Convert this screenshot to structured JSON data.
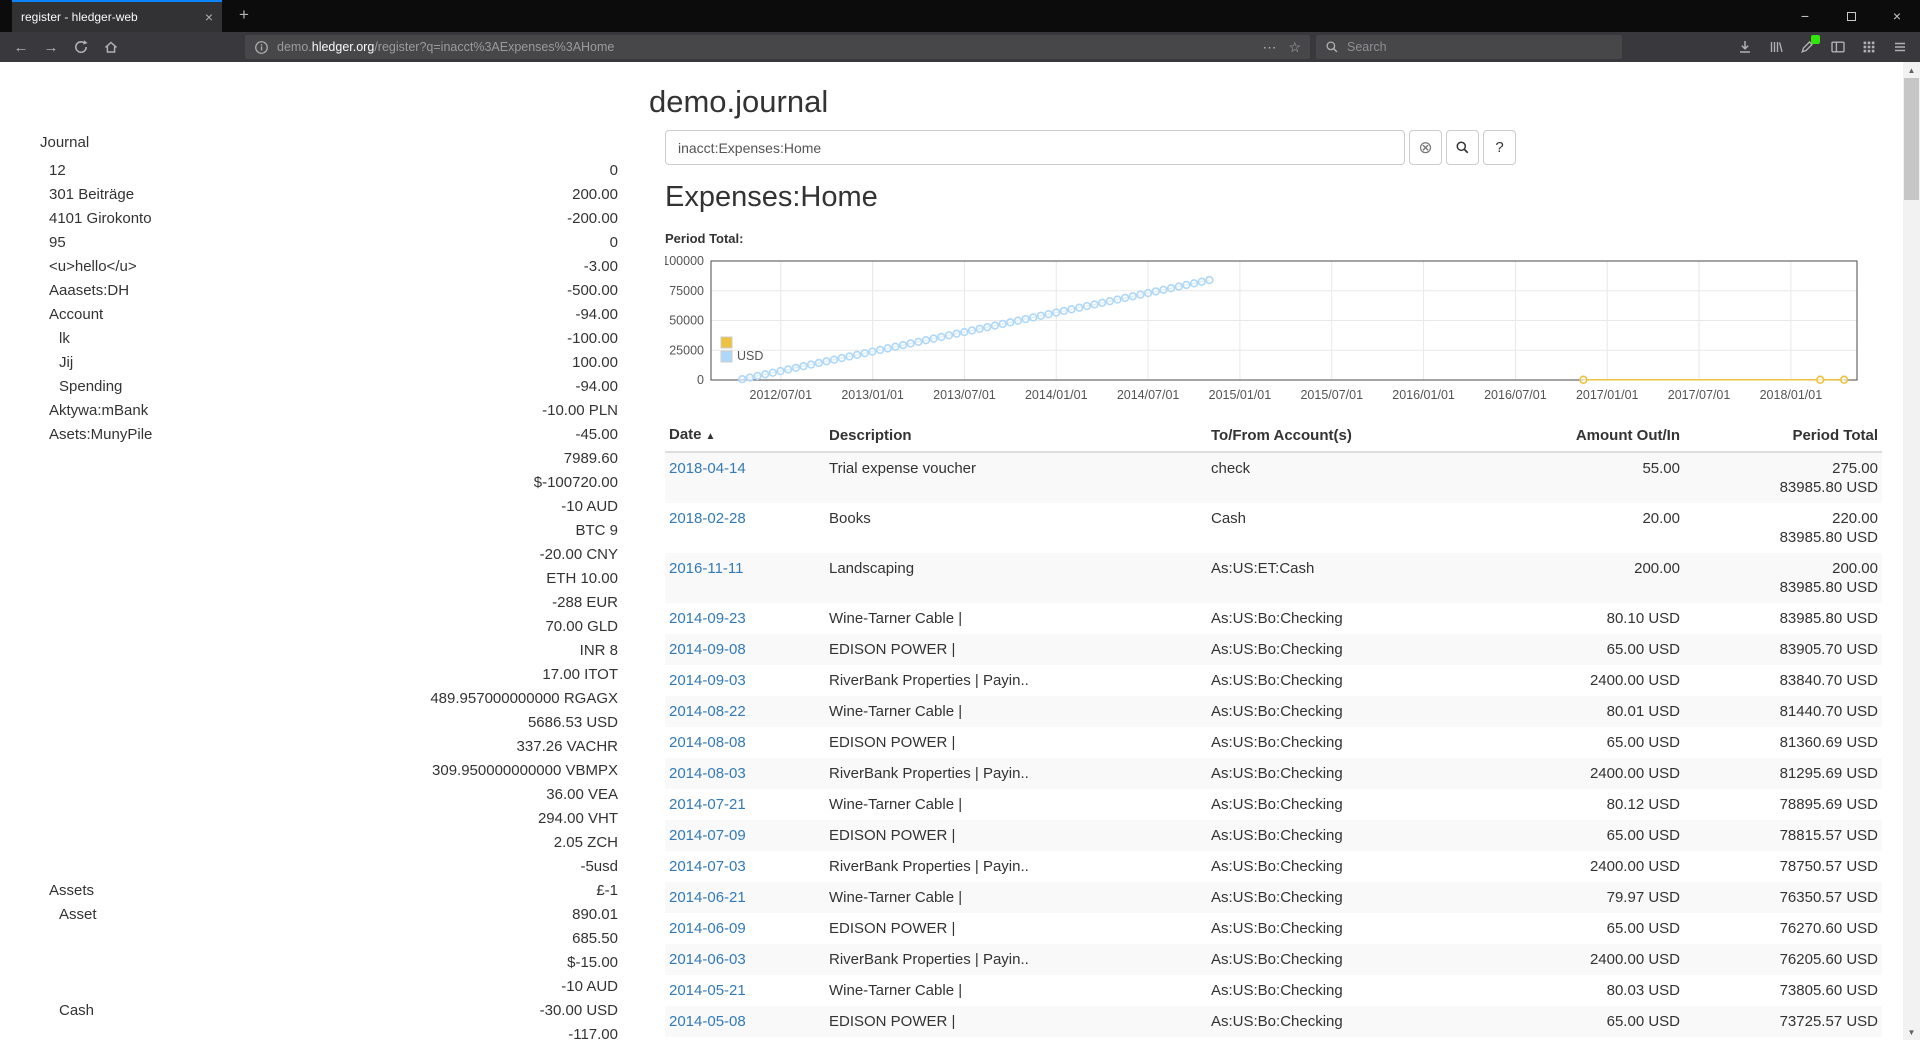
{
  "browser": {
    "tab": {
      "title": "register - hledger-web"
    },
    "url": {
      "prefix": "demo.",
      "domain": "hledger.org",
      "path": "/register?q=inacct%3AExpenses%3AHome"
    },
    "search_placeholder": "Search"
  },
  "icons": {
    "back": "←",
    "forward": "→",
    "new_tab": "+",
    "tab_close": "×",
    "minimize": "−",
    "close": "×",
    "page_actions": "⋯",
    "bookmark": "☆",
    "clear_query": "⊗",
    "sort_asc": "▲",
    "scroll_up": "▲",
    "scroll_down": "▼"
  },
  "theme": {
    "accent": "#0a84ff",
    "negative_amount": "#c00000",
    "link": "#337ab7"
  },
  "page": {
    "title": "demo.journal",
    "sidebar": {
      "heading": "Journal",
      "accounts": [
        {
          "name": "12",
          "indent": 1,
          "amount": "0"
        },
        {
          "name": "301 Beiträge",
          "indent": 1,
          "amount": "200.00"
        },
        {
          "name": "4101 Girokonto",
          "indent": 1,
          "amount": "-200.00",
          "neg": true
        },
        {
          "name": "95",
          "indent": 1,
          "amount": "0"
        },
        {
          "name": "<u>hello</u>",
          "indent": 1,
          "amount": "-3.00",
          "neg": true
        },
        {
          "name": "Aaasets:DH",
          "indent": 1,
          "amount": "-500.00",
          "neg": true
        },
        {
          "name": "Account",
          "indent": 1,
          "amount": "-94.00",
          "neg": true
        },
        {
          "name": "lk",
          "indent": 2,
          "amount": "-100.00",
          "neg": true
        },
        {
          "name": "Jij",
          "indent": 2,
          "amount": "100.00"
        },
        {
          "name": "Spending",
          "indent": 2,
          "amount": "-94.00",
          "neg": true
        },
        {
          "name": "Aktywa:mBank",
          "indent": 1,
          "amount": "-10.00 PLN",
          "neg": true
        },
        {
          "name": "Asets:MunyPile",
          "indent": 1,
          "amount": "-45.00",
          "neg": true
        },
        {
          "name": "",
          "indent": 1,
          "amount": "7989.60"
        },
        {
          "name": "",
          "indent": 1,
          "amount": "$-100720.00"
        },
        {
          "name": "",
          "indent": 1,
          "amount": "-10 AUD"
        },
        {
          "name": "",
          "indent": 1,
          "amount": "BTC 9"
        },
        {
          "name": "",
          "indent": 1,
          "amount": "-20.00 CNY"
        },
        {
          "name": "",
          "indent": 1,
          "amount": "ETH 10.00"
        },
        {
          "name": "",
          "indent": 1,
          "amount": "-288 EUR"
        },
        {
          "name": "",
          "indent": 1,
          "amount": "70.00 GLD"
        },
        {
          "name": "",
          "indent": 1,
          "amount": "INR 8"
        },
        {
          "name": "",
          "indent": 1,
          "amount": "17.00 ITOT"
        },
        {
          "name": "",
          "indent": 1,
          "amount": "489.957000000000 RGAGX"
        },
        {
          "name": "",
          "indent": 1,
          "amount": "5686.53 USD"
        },
        {
          "name": "",
          "indent": 1,
          "amount": "337.26 VACHR"
        },
        {
          "name": "",
          "indent": 1,
          "amount": "309.950000000000 VBMPX"
        },
        {
          "name": "",
          "indent": 1,
          "amount": "36.00 VEA"
        },
        {
          "name": "",
          "indent": 1,
          "amount": "294.00 VHT"
        },
        {
          "name": "",
          "indent": 1,
          "amount": "2.05 ZCH"
        },
        {
          "name": "",
          "indent": 1,
          "amount": "-5usd"
        },
        {
          "name": "Assets",
          "indent": 1,
          "amount": "£-1"
        },
        {
          "name": "Asset",
          "indent": 2,
          "amount": "890.01"
        },
        {
          "name": "",
          "indent": 2,
          "amount": "685.50"
        },
        {
          "name": "",
          "indent": 2,
          "amount": "$-15.00"
        },
        {
          "name": "",
          "indent": 2,
          "amount": "-10 AUD"
        },
        {
          "name": "Cash",
          "indent": 2,
          "amount": "-30.00 USD"
        },
        {
          "name": "",
          "indent": 2,
          "amount": "-117.00",
          "neg": true
        }
      ]
    },
    "search": {
      "value": "inacct:Expenses:Home",
      "help_label": "?"
    },
    "register": {
      "heading": "Expenses:Home",
      "chart_label": "Period Total:",
      "table": {
        "headers": {
          "date": "Date",
          "description": "Description",
          "account": "To/From Account(s)",
          "amount": "Amount Out/In",
          "total": "Period Total"
        },
        "rows": [
          {
            "date": "2018-04-14",
            "desc": "Trial expense voucher",
            "acct": "check",
            "amount": "55.00",
            "total": [
              "275.00",
              "83985.80 USD"
            ]
          },
          {
            "date": "2018-02-28",
            "desc": "Books",
            "acct": "Cash",
            "amount": "20.00",
            "total": [
              "220.00",
              "83985.80 USD"
            ]
          },
          {
            "date": "2016-11-11",
            "desc": "Landscaping",
            "acct": "As:US:ET:Cash",
            "amount": "200.00",
            "total": [
              "200.00",
              "83985.80 USD"
            ]
          },
          {
            "date": "2014-09-23",
            "desc": "Wine-Tarner Cable |",
            "acct": "As:US:Bo:Checking",
            "amount": "80.10 USD",
            "total": [
              "83985.80 USD"
            ]
          },
          {
            "date": "2014-09-08",
            "desc": "EDISON POWER |",
            "acct": "As:US:Bo:Checking",
            "amount": "65.00 USD",
            "total": [
              "83905.70 USD"
            ]
          },
          {
            "date": "2014-09-03",
            "desc": "RiverBank Properties | Payin..",
            "acct": "As:US:Bo:Checking",
            "amount": "2400.00 USD",
            "total": [
              "83840.70 USD"
            ]
          },
          {
            "date": "2014-08-22",
            "desc": "Wine-Tarner Cable |",
            "acct": "As:US:Bo:Checking",
            "amount": "80.01 USD",
            "total": [
              "81440.70 USD"
            ]
          },
          {
            "date": "2014-08-08",
            "desc": "EDISON POWER |",
            "acct": "As:US:Bo:Checking",
            "amount": "65.00 USD",
            "total": [
              "81360.69 USD"
            ]
          },
          {
            "date": "2014-08-03",
            "desc": "RiverBank Properties | Payin..",
            "acct": "As:US:Bo:Checking",
            "amount": "2400.00 USD",
            "total": [
              "81295.69 USD"
            ]
          },
          {
            "date": "2014-07-21",
            "desc": "Wine-Tarner Cable |",
            "acct": "As:US:Bo:Checking",
            "amount": "80.12 USD",
            "total": [
              "78895.69 USD"
            ]
          },
          {
            "date": "2014-07-09",
            "desc": "EDISON POWER |",
            "acct": "As:US:Bo:Checking",
            "amount": "65.00 USD",
            "total": [
              "78815.57 USD"
            ]
          },
          {
            "date": "2014-07-03",
            "desc": "RiverBank Properties | Payin..",
            "acct": "As:US:Bo:Checking",
            "amount": "2400.00 USD",
            "total": [
              "78750.57 USD"
            ]
          },
          {
            "date": "2014-06-21",
            "desc": "Wine-Tarner Cable |",
            "acct": "As:US:Bo:Checking",
            "amount": "79.97 USD",
            "total": [
              "76350.57 USD"
            ]
          },
          {
            "date": "2014-06-09",
            "desc": "EDISON POWER |",
            "acct": "As:US:Bo:Checking",
            "amount": "65.00 USD",
            "total": [
              "76270.60 USD"
            ]
          },
          {
            "date": "2014-06-03",
            "desc": "RiverBank Properties | Payin..",
            "acct": "As:US:Bo:Checking",
            "amount": "2400.00 USD",
            "total": [
              "76205.60 USD"
            ]
          },
          {
            "date": "2014-05-21",
            "desc": "Wine-Tarner Cable |",
            "acct": "As:US:Bo:Checking",
            "amount": "80.03 USD",
            "total": [
              "73805.60 USD"
            ]
          },
          {
            "date": "2014-05-08",
            "desc": "EDISON POWER |",
            "acct": "As:US:Bo:Checking",
            "amount": "65.00 USD",
            "total": [
              "73725.57 USD"
            ]
          }
        ]
      }
    }
  },
  "chart_data": {
    "type": "line",
    "title": "Period Total:",
    "x_range": [
      2012.12,
      2018.36
    ],
    "y_range": [
      0,
      100000
    ],
    "y_ticks": [
      0,
      25000,
      50000,
      75000,
      100000
    ],
    "x_ticks": [
      {
        "v": 2012.5,
        "label": "2012/07/01"
      },
      {
        "v": 2013.0,
        "label": "2013/01/01"
      },
      {
        "v": 2013.5,
        "label": "2013/07/01"
      },
      {
        "v": 2014.0,
        "label": "2014/01/01"
      },
      {
        "v": 2014.5,
        "label": "2014/07/01"
      },
      {
        "v": 2015.0,
        "label": "2015/01/01"
      },
      {
        "v": 2015.5,
        "label": "2015/07/01"
      },
      {
        "v": 2016.0,
        "label": "2016/01/01"
      },
      {
        "v": 2016.5,
        "label": "2016/07/01"
      },
      {
        "v": 2017.0,
        "label": "2017/01/01"
      },
      {
        "v": 2017.5,
        "label": "2017/07/01"
      },
      {
        "v": 2018.0,
        "label": "2018/01/01"
      }
    ],
    "grid": true,
    "legend_position": "bottom-left",
    "series": [
      {
        "name": "",
        "color": "#edc240",
        "points": [
          [
            2016.87,
            200
          ],
          [
            2018.16,
            220
          ],
          [
            2018.29,
            275
          ]
        ]
      },
      {
        "name": "USD",
        "color": "#afd8f8",
        "x_start": 2012.29,
        "x_step": 0.0417,
        "values": [
          700,
          2065,
          3431,
          4796,
          6161,
          7527,
          8892,
          10257,
          11623,
          12988,
          14353,
          15719,
          17084,
          18449,
          19815,
          21180,
          22545,
          23911,
          25276,
          26641,
          28007,
          29372,
          30737,
          32103,
          33468,
          34833,
          36199,
          37564,
          38929,
          40295,
          41660,
          43025,
          44391,
          45756,
          47121,
          48487,
          49852,
          51217,
          52583,
          53948,
          55313,
          56679,
          58044,
          59409,
          60775,
          62140,
          63505,
          64871,
          66236,
          67601,
          68967,
          70332,
          71697,
          73063,
          74428,
          75793,
          77159,
          78524,
          79889,
          81255,
          82620,
          83986
        ]
      }
    ]
  }
}
